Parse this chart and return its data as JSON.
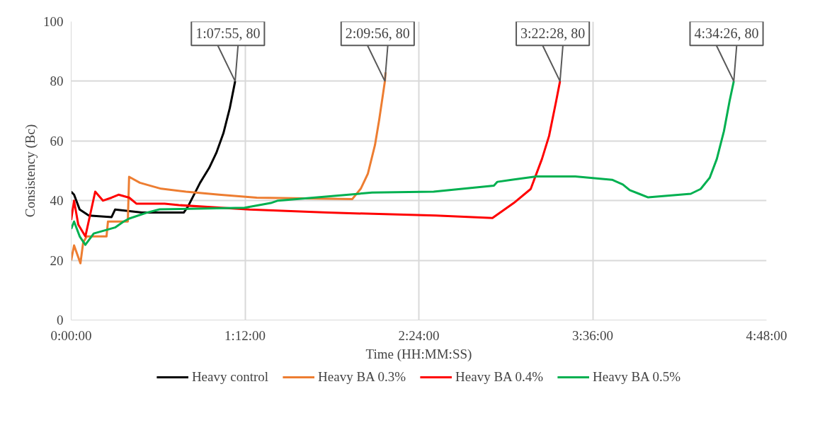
{
  "chart_data": {
    "type": "line",
    "xlabel": "Time (HH:MM:SS)",
    "ylabel": "Consistency (Bc)",
    "xlim": [
      0,
      4.8
    ],
    "ylim": [
      0,
      100
    ],
    "xticks": [
      {
        "value": 0,
        "label": "0:00:00"
      },
      {
        "value": 1.2,
        "label": "1:12:00"
      },
      {
        "value": 2.4,
        "label": "2:24:00"
      },
      {
        "value": 3.6,
        "label": "3:36:00"
      },
      {
        "value": 4.8,
        "label": "4:48:00"
      }
    ],
    "yticks": [
      0,
      20,
      40,
      60,
      80,
      100
    ],
    "grid": true,
    "legend": "bottom",
    "marker": "none",
    "line_style": "solid",
    "annotations": [
      {
        "text": "1:07:55, 80",
        "x": 1.1319,
        "y": 80
      },
      {
        "text": "2:09:56, 80",
        "x": 2.1656,
        "y": 80
      },
      {
        "text": "3:22:28, 80",
        "x": 3.3744,
        "y": 80
      },
      {
        "text": "4:34:26, 80",
        "x": 4.5739,
        "y": 80
      }
    ],
    "series": [
      {
        "name": "Heavy control",
        "color": "#000000",
        "x": [
          0,
          0.02,
          0.059,
          0.122,
          0.279,
          0.303,
          0.489,
          0.777,
          0.806,
          0.89,
          0.953,
          1.002,
          1.051,
          1.095,
          1.1319
        ],
        "values": [
          43,
          42,
          37,
          35,
          34.5,
          37,
          36,
          36,
          38,
          46,
          51,
          56,
          62.6,
          71,
          80
        ]
      },
      {
        "name": "Heavy BA 0.3%",
        "color": "#ed7d31",
        "x": [
          0,
          0.02,
          0.064,
          0.083,
          0.108,
          0.244,
          0.254,
          0.391,
          0.4,
          0.474,
          0.547,
          0.621,
          0.792,
          1.021,
          1.281,
          1.94,
          1.999,
          2.048,
          2.097,
          2.126,
          2.1656,
          2.17
        ],
        "values": [
          20,
          25,
          19,
          26,
          28,
          28,
          33,
          33,
          48,
          46,
          45,
          44,
          43,
          42,
          41,
          40.5,
          44,
          49,
          58.6,
          67,
          80,
          83
        ]
      },
      {
        "name": "Heavy BA 0.4%",
        "color": "#ff0000",
        "x": [
          0,
          0.02,
          0.049,
          0.098,
          0.166,
          0.22,
          0.279,
          0.327,
          0.401,
          0.45,
          0.645,
          0.743,
          1.232,
          1.769,
          2.517,
          2.908,
          3.055,
          3.172,
          3.25,
          3.299,
          3.348,
          3.3744
        ],
        "values": [
          33.5,
          40,
          32,
          28,
          43,
          40,
          41,
          42,
          41,
          39,
          39,
          38.5,
          37,
          36,
          35,
          34.2,
          39.2,
          43.9,
          54,
          61.7,
          73.4,
          80
        ]
      },
      {
        "name": "Heavy BA 0.5%",
        "color": "#00b050",
        "x": [
          0,
          0.02,
          0.059,
          0.098,
          0.156,
          0.23,
          0.303,
          0.362,
          0.401,
          0.523,
          0.611,
          1.197,
          1.378,
          1.427,
          1.672,
          2.077,
          2.502,
          2.918,
          2.942,
          3.04,
          3.211,
          3.48,
          3.734,
          3.808,
          3.856,
          3.92,
          3.983,
          4.277,
          4.345,
          4.408,
          4.457,
          4.506,
          4.545,
          4.5739
        ],
        "values": [
          30.5,
          33,
          28,
          25.2,
          29,
          30,
          31,
          33,
          34,
          36,
          37.1,
          37.6,
          39.2,
          40,
          41,
          42.7,
          43,
          45,
          46.3,
          47,
          48.1,
          48.1,
          47,
          45.4,
          43.5,
          42.3,
          41.1,
          42.3,
          43.9,
          47.7,
          54,
          63.3,
          73.4,
          80
        ]
      }
    ]
  }
}
